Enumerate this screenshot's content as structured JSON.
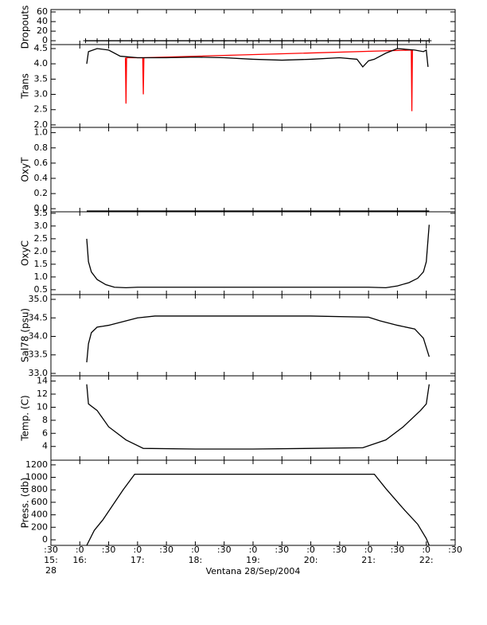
{
  "chart_data": [
    {
      "type": "line",
      "ylabel": "Dropouts",
      "ylim": [
        -8,
        65
      ],
      "yticks": [
        0,
        20,
        40,
        60
      ],
      "markers": "+",
      "series": [
        {
          "color": "#000000",
          "x": [
            16.1,
            16.3,
            16.5,
            16.7,
            16.9,
            17.1,
            17.3,
            17.5,
            17.7,
            17.9,
            18.1,
            18.3,
            18.5,
            18.7,
            18.9,
            19.1,
            19.3,
            19.5,
            19.7,
            19.9,
            20.1,
            20.3,
            20.5,
            20.7,
            20.9,
            21.1,
            21.3,
            21.5,
            21.7,
            21.9,
            22.05
          ],
          "values": [
            0,
            0,
            0,
            0,
            0,
            0,
            0,
            0,
            0,
            0,
            0,
            0,
            0,
            0,
            0,
            0,
            0,
            0,
            0,
            0,
            0,
            0,
            0,
            0,
            0,
            0,
            0,
            0,
            0,
            0,
            0
          ]
        }
      ]
    },
    {
      "type": "line",
      "ylabel": "Trans",
      "ylim": [
        1.92,
        4.63
      ],
      "yticks": [
        {
          "value": 2,
          "label": "2.0"
        },
        2.5,
        {
          "value": 3,
          "label": "3.0"
        },
        3.5,
        {
          "value": 4,
          "label": "4.0"
        },
        4.5
      ],
      "series": [
        {
          "color": "#ff0000",
          "x": [
            16.79,
            16.8,
            16.81,
            17.09,
            17.1,
            17.11,
            21.74,
            21.75,
            21.76
          ],
          "values": [
            4.2,
            2.7,
            4.2,
            4.2,
            3.0,
            4.2,
            4.45,
            2.45,
            4.45
          ]
        },
        {
          "color": "#000000",
          "x": [
            16.12,
            16.15,
            16.3,
            16.5,
            16.7,
            17.0,
            17.5,
            18.0,
            18.5,
            19.0,
            19.5,
            20.0,
            20.5,
            20.8,
            20.9,
            21.0,
            21.1,
            21.3,
            21.5,
            21.8,
            21.95,
            22.0,
            22.03
          ],
          "values": [
            4.0,
            4.4,
            4.5,
            4.45,
            4.25,
            4.2,
            4.2,
            4.22,
            4.2,
            4.15,
            4.12,
            4.15,
            4.2,
            4.15,
            3.9,
            4.1,
            4.15,
            4.35,
            4.5,
            4.45,
            4.4,
            4.45,
            3.9
          ]
        }
      ]
    },
    {
      "type": "line",
      "ylabel": "OxyT",
      "ylim": [
        -0.04,
        1.07
      ],
      "yticks": [
        {
          "value": 0,
          "label": "0.0"
        },
        0.2,
        0.4,
        0.6,
        0.8,
        {
          "value": 1,
          "label": "1.0"
        }
      ],
      "series": [
        {
          "color": "#000000",
          "x": [
            16.12,
            22.05
          ],
          "values": [
            -0.03,
            -0.03
          ]
        }
      ]
    },
    {
      "type": "line",
      "ylabel": "OxyC",
      "ylim": [
        0.31,
        3.56
      ],
      "yticks": [
        0.5,
        {
          "value": 1,
          "label": "1.0"
        },
        1.5,
        {
          "value": 2,
          "label": "2.0"
        },
        2.5,
        {
          "value": 3,
          "label": "3.0"
        },
        3.5
      ],
      "series": [
        {
          "color": "#000000",
          "x": [
            16.12,
            16.15,
            16.2,
            16.3,
            16.45,
            16.6,
            16.8,
            17.0,
            18.0,
            19.0,
            20.0,
            21.0,
            21.3,
            21.5,
            21.7,
            21.85,
            21.95,
            22.0,
            22.05
          ],
          "values": [
            2.5,
            1.6,
            1.2,
            0.9,
            0.7,
            0.6,
            0.58,
            0.6,
            0.6,
            0.6,
            0.6,
            0.6,
            0.58,
            0.65,
            0.78,
            0.95,
            1.2,
            1.6,
            3.05
          ]
        }
      ]
    },
    {
      "type": "line",
      "ylabel": "Sal78 (psu)",
      "ylim": [
        32.935,
        35.13
      ],
      "yticks": [
        {
          "value": 33,
          "label": "33.0"
        },
        33.5,
        {
          "value": 34,
          "label": "34.0"
        },
        34.5,
        {
          "value": 35,
          "label": "35.0"
        }
      ],
      "series": [
        {
          "color": "#000000",
          "x": [
            16.12,
            16.15,
            16.2,
            16.3,
            16.5,
            16.8,
            17.0,
            17.3,
            18.0,
            19.0,
            20.0,
            21.0,
            21.2,
            21.5,
            21.8,
            21.95,
            22.0,
            22.05
          ],
          "values": [
            33.3,
            33.8,
            34.1,
            34.25,
            34.3,
            34.42,
            34.5,
            34.55,
            34.55,
            34.55,
            34.55,
            34.52,
            34.42,
            34.3,
            34.2,
            33.95,
            33.7,
            33.45
          ]
        }
      ]
    },
    {
      "type": "line",
      "ylabel": "Temp. (C)",
      "ylim": [
        1.9,
        14.8
      ],
      "yticks": [
        4,
        6,
        8,
        10,
        12,
        14
      ],
      "series": [
        {
          "color": "#000000",
          "x": [
            16.12,
            16.15,
            16.3,
            16.5,
            16.8,
            17.1,
            18.0,
            19.0,
            20.0,
            20.9,
            21.3,
            21.6,
            21.9,
            22.0,
            22.05
          ],
          "values": [
            13.5,
            10.5,
            9.5,
            7.0,
            5.0,
            3.7,
            3.6,
            3.6,
            3.7,
            3.8,
            5.0,
            7.0,
            9.5,
            10.5,
            13.5
          ]
        }
      ]
    },
    {
      "type": "line",
      "ylabel": "Press. (db)",
      "ylim": [
        -90,
        1275
      ],
      "yticks": [
        0,
        200,
        400,
        600,
        800,
        1000,
        1200
      ],
      "xlim": [
        15.5,
        22.5
      ],
      "xlabel": "Ventana 28/Sep/2004",
      "xticks": [
        {
          "value": 15.5,
          "label": [
            ":30",
            "15:",
            "28"
          ]
        },
        {
          "value": 16,
          "label": [
            ":0",
            "16:"
          ]
        },
        {
          "value": 16.5,
          "label": [
            ":30"
          ]
        },
        {
          "value": 17,
          "label": [
            ":0",
            "17:"
          ]
        },
        {
          "value": 17.5,
          "label": [
            ":30"
          ]
        },
        {
          "value": 18,
          "label": [
            ":0",
            "18:"
          ]
        },
        {
          "value": 18.5,
          "label": [
            ":30"
          ]
        },
        {
          "value": 19,
          "label": [
            ":0",
            "19:"
          ]
        },
        {
          "value": 19.5,
          "label": [
            ":30"
          ]
        },
        {
          "value": 20,
          "label": [
            ":0",
            "20:"
          ]
        },
        {
          "value": 20.5,
          "label": [
            ":30"
          ]
        },
        {
          "value": 21,
          "label": [
            ":0",
            "21:"
          ]
        },
        {
          "value": 21.5,
          "label": [
            ":30"
          ]
        },
        {
          "value": 22,
          "label": [
            ":0",
            "22:"
          ]
        },
        {
          "value": 22.5,
          "label": [
            ":30"
          ]
        }
      ],
      "series": [
        {
          "color": "#000000",
          "x": [
            16.12,
            16.25,
            16.4,
            16.75,
            16.95,
            21.1,
            21.3,
            21.6,
            21.85,
            22.0,
            22.05
          ],
          "values": [
            -90,
            150,
            320,
            800,
            1050,
            1050,
            820,
            500,
            250,
            20,
            -90
          ]
        }
      ]
    }
  ]
}
